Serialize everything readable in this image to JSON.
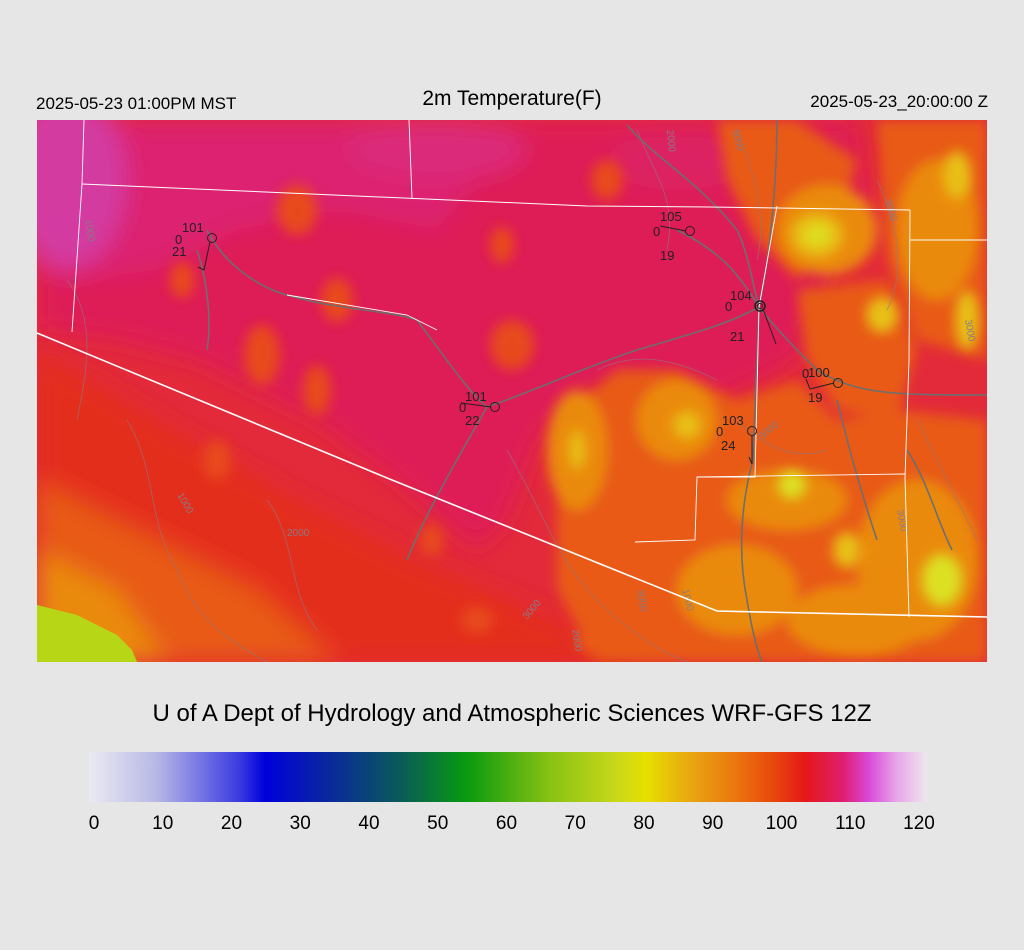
{
  "header": {
    "local_time": "2025-05-23 01:00PM MST",
    "title": "2m Temperature(F)",
    "utc_time": "2025-05-23_20:00:00 Z"
  },
  "credit": "U of A Dept of Hydrology and Atmospheric Sciences WRF-GFS 12Z",
  "colorbar": {
    "min": 0,
    "max": 120,
    "ticks": [
      "0",
      "10",
      "20",
      "30",
      "40",
      "50",
      "60",
      "70",
      "80",
      "90",
      "100",
      "110",
      "120"
    ]
  },
  "stations": [
    {
      "temp": "101",
      "dew": "21",
      "zero": "0"
    },
    {
      "temp": "105",
      "dew": "19",
      "zero": "0"
    },
    {
      "temp": "104",
      "dew": "21",
      "zero": "0"
    },
    {
      "temp": "100",
      "dew": "19",
      "zero": "0"
    },
    {
      "temp": "101",
      "dew": "22",
      "zero": "0"
    },
    {
      "temp": "103",
      "dew": "24",
      "zero": "0"
    }
  ],
  "contour_labels": [
    "1000",
    "2000",
    "3000",
    "2000",
    "1000",
    "3000",
    "1000",
    "2000",
    "3000",
    "3000",
    "3000",
    "3000",
    "3000"
  ],
  "colors": {
    "background": "#e6e6e6",
    "t_110_plus": "#d33aa0",
    "t_105": "#de1c56",
    "t_100": "#e42d1c",
    "t_95": "#e85a12",
    "t_90": "#ea8a10",
    "t_85": "#e8c012",
    "t_80": "#dce022",
    "t_75": "#b6d616",
    "border": "#ffffff",
    "road": "#6e6e6e"
  }
}
